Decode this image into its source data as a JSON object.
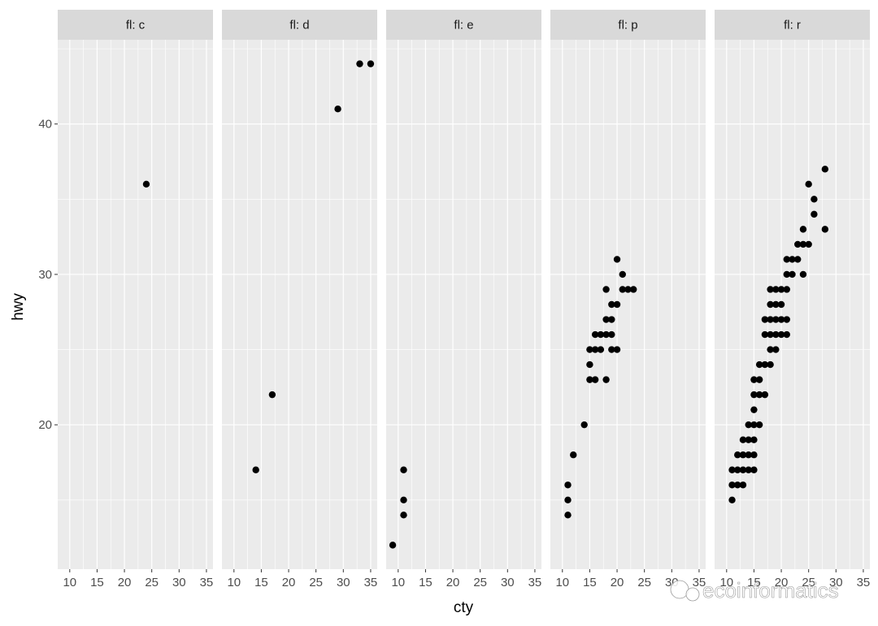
{
  "chart_data": {
    "type": "scatter",
    "facet_variable": "fl",
    "xlabel": "cty",
    "ylabel": "hwy",
    "xlim": [
      7.8,
      36.2
    ],
    "ylim": [
      10.4,
      45.6
    ],
    "x_ticks": [
      10,
      15,
      20,
      25,
      30,
      35
    ],
    "y_ticks": [
      20,
      30,
      40
    ],
    "grid": true,
    "point_color": "#000000",
    "panel_background": "#ebebeb",
    "strip_background": "#d9d9d9",
    "panels": [
      {
        "label": "fl: c",
        "points": [
          [
            24,
            36
          ]
        ]
      },
      {
        "label": "fl: d",
        "points": [
          [
            14,
            17
          ],
          [
            17,
            22
          ],
          [
            29,
            41
          ],
          [
            33,
            44
          ],
          [
            35,
            44
          ]
        ]
      },
      {
        "label": "fl: e",
        "points": [
          [
            9,
            12
          ],
          [
            11,
            14
          ],
          [
            11,
            15
          ],
          [
            11,
            17
          ]
        ]
      },
      {
        "label": "fl: p",
        "points": [
          [
            11,
            14
          ],
          [
            11,
            15
          ],
          [
            11,
            16
          ],
          [
            12,
            18
          ],
          [
            14,
            20
          ],
          [
            15,
            23
          ],
          [
            15,
            24
          ],
          [
            15,
            25
          ],
          [
            16,
            23
          ],
          [
            16,
            25
          ],
          [
            16,
            26
          ],
          [
            17,
            25
          ],
          [
            17,
            26
          ],
          [
            18,
            23
          ],
          [
            18,
            26
          ],
          [
            18,
            27
          ],
          [
            18,
            29
          ],
          [
            19,
            25
          ],
          [
            19,
            26
          ],
          [
            19,
            27
          ],
          [
            19,
            28
          ],
          [
            20,
            25
          ],
          [
            20,
            28
          ],
          [
            20,
            31
          ],
          [
            21,
            29
          ],
          [
            21,
            30
          ],
          [
            22,
            29
          ],
          [
            23,
            29
          ]
        ]
      },
      {
        "label": "fl: r",
        "points": [
          [
            11,
            15
          ],
          [
            11,
            16
          ],
          [
            11,
            17
          ],
          [
            12,
            16
          ],
          [
            12,
            17
          ],
          [
            12,
            18
          ],
          [
            13,
            16
          ],
          [
            13,
            17
          ],
          [
            13,
            18
          ],
          [
            13,
            19
          ],
          [
            14,
            17
          ],
          [
            14,
            18
          ],
          [
            14,
            19
          ],
          [
            14,
            20
          ],
          [
            15,
            17
          ],
          [
            15,
            18
          ],
          [
            15,
            19
          ],
          [
            15,
            20
          ],
          [
            15,
            21
          ],
          [
            15,
            22
          ],
          [
            15,
            23
          ],
          [
            16,
            20
          ],
          [
            16,
            22
          ],
          [
            16,
            23
          ],
          [
            16,
            24
          ],
          [
            17,
            22
          ],
          [
            17,
            24
          ],
          [
            17,
            26
          ],
          [
            17,
            27
          ],
          [
            18,
            24
          ],
          [
            18,
            25
          ],
          [
            18,
            26
          ],
          [
            18,
            27
          ],
          [
            18,
            28
          ],
          [
            18,
            29
          ],
          [
            19,
            25
          ],
          [
            19,
            26
          ],
          [
            19,
            27
          ],
          [
            19,
            28
          ],
          [
            19,
            29
          ],
          [
            20,
            26
          ],
          [
            20,
            27
          ],
          [
            20,
            28
          ],
          [
            20,
            29
          ],
          [
            21,
            26
          ],
          [
            21,
            27
          ],
          [
            21,
            29
          ],
          [
            21,
            30
          ],
          [
            21,
            31
          ],
          [
            22,
            30
          ],
          [
            22,
            31
          ],
          [
            23,
            31
          ],
          [
            23,
            32
          ],
          [
            24,
            30
          ],
          [
            24,
            32
          ],
          [
            24,
            33
          ],
          [
            25,
            32
          ],
          [
            25,
            36
          ],
          [
            26,
            34
          ],
          [
            26,
            35
          ],
          [
            28,
            33
          ],
          [
            28,
            37
          ]
        ]
      }
    ]
  },
  "watermark": "ecoinformatics"
}
